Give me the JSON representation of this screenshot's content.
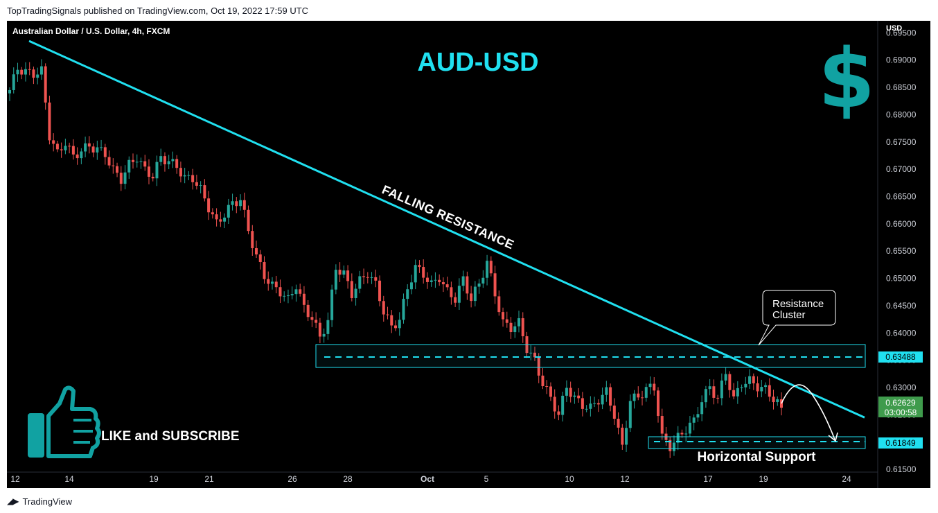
{
  "header": {
    "published": "TopTradingSignals published on TradingView.com, Oct 19, 2022 17:59 UTC"
  },
  "footer": {
    "brand": "TradingView"
  },
  "chart_data": {
    "type": "candlestick",
    "title": "AUD-USD",
    "symbol_label": "Australian Dollar / U.S. Dollar, 4h, FXCM",
    "currency_label": "USD",
    "ylim": [
      0.6145,
      0.6972
    ],
    "y_ticks": [
      "0.69500",
      "0.69000",
      "0.68500",
      "0.68000",
      "0.67500",
      "0.67000",
      "0.66500",
      "0.66000",
      "0.65500",
      "0.65000",
      "0.64500",
      "0.64000",
      "0.63500",
      "0.63000",
      "0.62500",
      "0.62000",
      "0.61500"
    ],
    "x_ticks": [
      "12",
      "14",
      "19",
      "21",
      "26",
      "28",
      "Oct",
      "5",
      "10",
      "12",
      "17",
      "19",
      "24"
    ],
    "price_badges": {
      "resistance": "0.63488",
      "current": "0.62629",
      "countdown": "03:00:58",
      "support": "0.61849"
    },
    "annotations": {
      "trendline": "FALLING RESISTANCE",
      "resistance_zone": [
        "Resistance",
        "Cluster"
      ],
      "support_zone": "Horizontal Support",
      "promo": "LIKE and SUBSCRIBE"
    },
    "levels": {
      "resistance_cluster": 0.63488,
      "horizontal_support": 0.61849,
      "current": 0.62629
    },
    "trendline": {
      "start": 0.6935,
      "end": 0.6245
    },
    "colors": {
      "up": "#26a69a",
      "down": "#ef5350",
      "accent": "#20e0f0",
      "badge_green": "#3f9b4c"
    },
    "close_path": [
      0.6845,
      0.6885,
      0.6878,
      0.6875,
      0.688,
      0.6762,
      0.6728,
      0.675,
      0.6722,
      0.6735,
      0.6742,
      0.6737,
      0.6728,
      0.6698,
      0.6682,
      0.6708,
      0.6722,
      0.6698,
      0.6688,
      0.6722,
      0.6714,
      0.6706,
      0.6683,
      0.6684,
      0.6662,
      0.663,
      0.66,
      0.6618,
      0.6637,
      0.6645,
      0.6588,
      0.654,
      0.6505,
      0.6486,
      0.6476,
      0.646,
      0.6488,
      0.6445,
      0.6428,
      0.6392,
      0.6422,
      0.652,
      0.6508,
      0.6472,
      0.6495,
      0.651,
      0.6488,
      0.644,
      0.641,
      0.6425,
      0.6482,
      0.652,
      0.6508,
      0.6488,
      0.6502,
      0.6475,
      0.6463,
      0.6498,
      0.6462,
      0.649,
      0.653,
      0.6472,
      0.6418,
      0.641,
      0.6418,
      0.6372,
      0.6348,
      0.6308,
      0.628,
      0.625,
      0.6302,
      0.628,
      0.6268,
      0.6262,
      0.6278,
      0.6292,
      0.625,
      0.619,
      0.6278,
      0.6282,
      0.6298,
      0.63,
      0.6208,
      0.6192,
      0.6208,
      0.6224,
      0.6238,
      0.6278,
      0.63,
      0.628,
      0.6328,
      0.6278,
      0.6308,
      0.6312,
      0.6302,
      0.6296,
      0.628,
      0.6263
    ]
  }
}
